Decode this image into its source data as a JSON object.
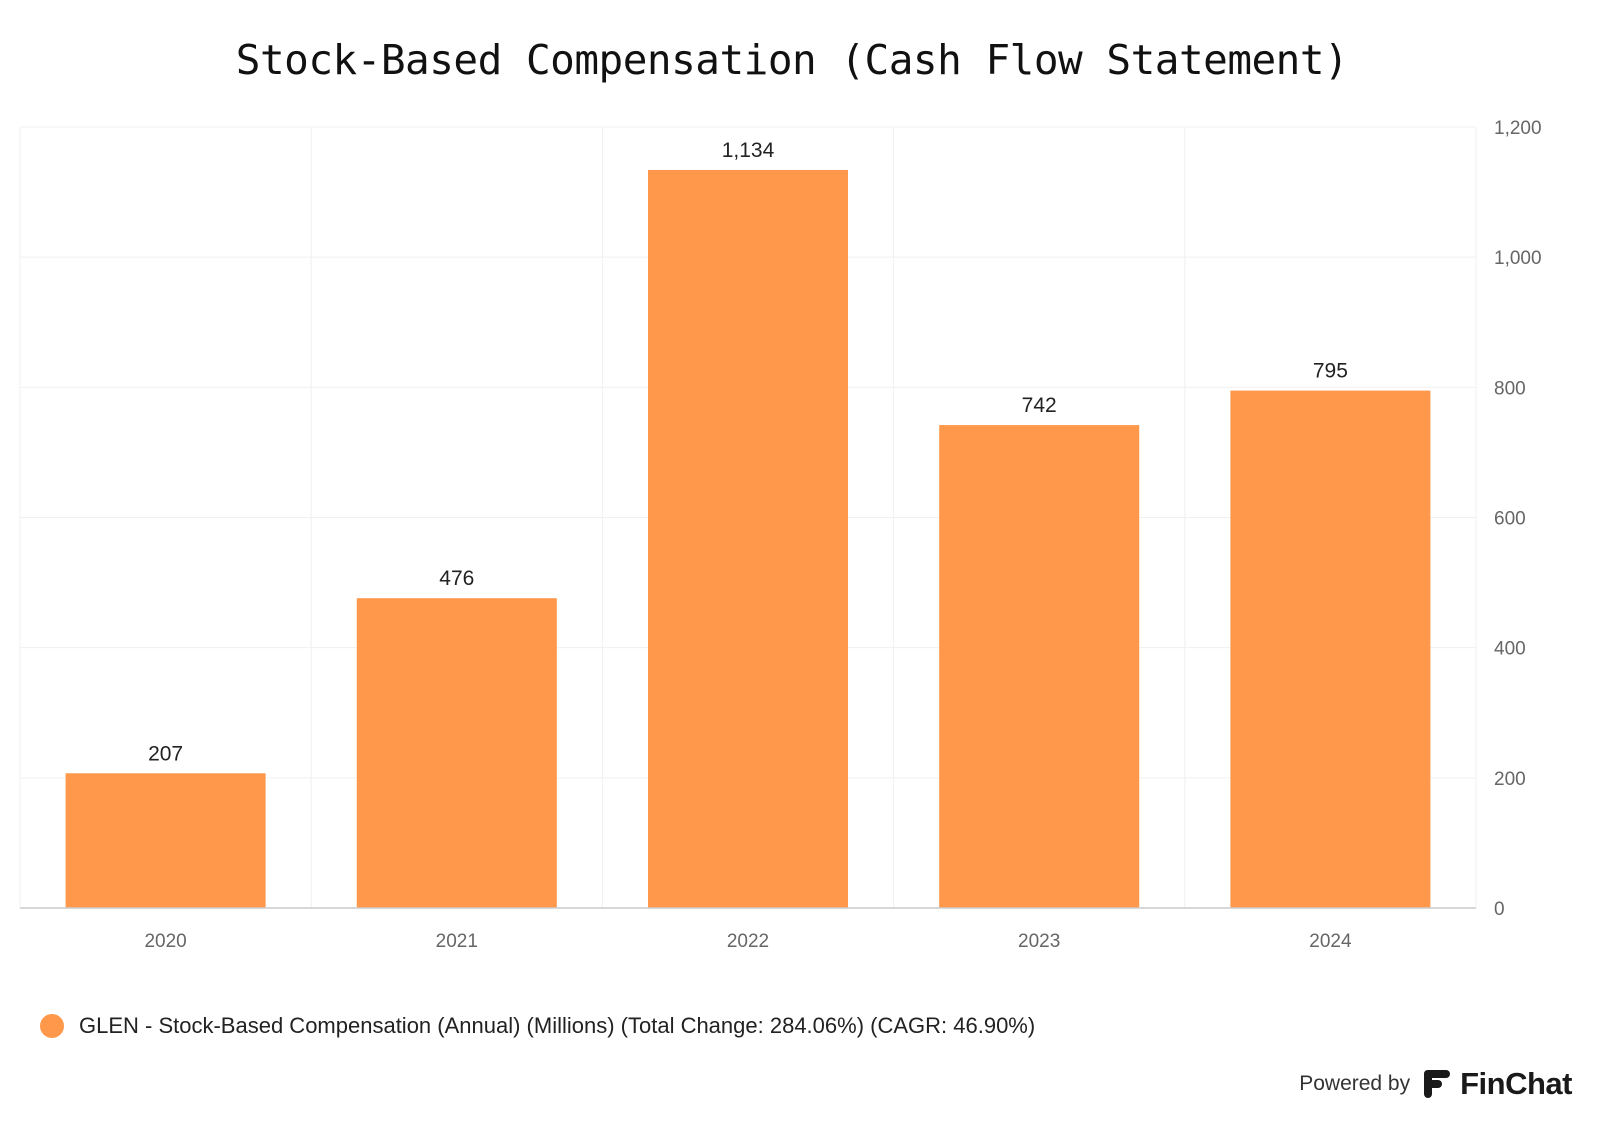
{
  "chart_data": {
    "type": "bar",
    "title": "Stock-Based Compensation (Cash Flow Statement)",
    "categories": [
      "2020",
      "2021",
      "2022",
      "2023",
      "2024"
    ],
    "series": [
      {
        "name": "GLEN - Stock-Based Compensation (Annual) (Millions) (Total Change: 284.06%) (CAGR: 46.90%)",
        "values": [
          207,
          476,
          1134,
          742,
          795
        ],
        "labels": [
          "207",
          "476",
          "1,134",
          "742",
          "795"
        ],
        "color": "#FF984A"
      }
    ],
    "ylim": [
      0,
      1200
    ],
    "yticks": [
      0,
      200,
      400,
      600,
      800,
      1000,
      1200
    ],
    "ytick_labels": [
      "0",
      "200",
      "400",
      "600",
      "800",
      "1,000",
      "1,200"
    ],
    "y_axis_side": "right",
    "grid": true,
    "legend_position": "bottom-left"
  },
  "footer": {
    "powered_by": "Powered by",
    "brand": "FinChat",
    "brand_icon": "finchat-logo-icon"
  },
  "colors": {
    "bar": "#FF984A",
    "grid": "#F0F0F0",
    "axis": "#CCCCCC",
    "tick_text": "#666666",
    "label_text": "#222222"
  }
}
